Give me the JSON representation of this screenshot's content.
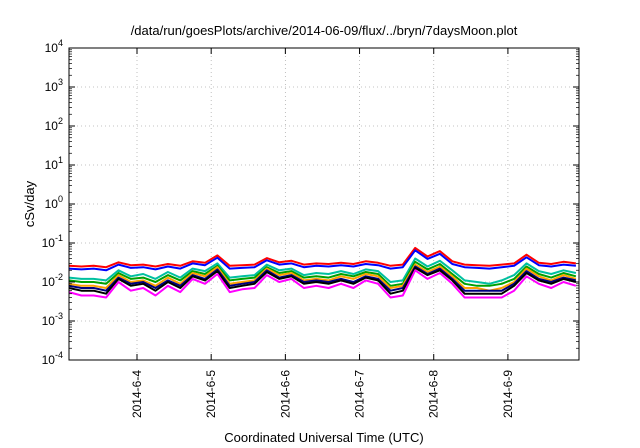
{
  "chart_data": {
    "type": "line",
    "title": "/data/run/goesPlots/archive/2014-06-09/flux/../bryn/7daysMoon.plot",
    "xlabel": "Coordinated Universal Time (UTC)",
    "ylabel": "cSv/day",
    "yscale": "log",
    "ylim": [
      0.0001,
      10000
    ],
    "xlim": [
      "2014-06-03T02:00",
      "2014-06-09T23:00"
    ],
    "grid": true,
    "legend": "none",
    "y_ticks": [
      {
        "base": "10",
        "exp": "4",
        "value": 10000
      },
      {
        "base": "10",
        "exp": "3",
        "value": 1000
      },
      {
        "base": "10",
        "exp": "2",
        "value": 100
      },
      {
        "base": "10",
        "exp": "1",
        "value": 10
      },
      {
        "base": "10",
        "exp": "0",
        "value": 1
      },
      {
        "base": "10",
        "exp": "-1",
        "value": 0.1
      },
      {
        "base": "10",
        "exp": "-2",
        "value": 0.01
      },
      {
        "base": "10",
        "exp": "-3",
        "value": 0.001
      },
      {
        "base": "10",
        "exp": "-4",
        "value": 0.0001
      }
    ],
    "x_ticks": [
      {
        "label": "2014-6-4",
        "value": "2014-06-04"
      },
      {
        "label": "2014-6-5",
        "value": "2014-06-05"
      },
      {
        "label": "2014-6-6",
        "value": "2014-06-06"
      },
      {
        "label": "2014-6-7",
        "value": "2014-06-07"
      },
      {
        "label": "2014-6-8",
        "value": "2014-06-08"
      },
      {
        "label": "2014-6-9",
        "value": "2014-06-09"
      }
    ],
    "x": [
      "2014-06-03T02:00",
      "2014-06-03T06:00",
      "2014-06-03T10:00",
      "2014-06-03T14:00",
      "2014-06-03T18:00",
      "2014-06-03T22:00",
      "2014-06-04T02:00",
      "2014-06-04T06:00",
      "2014-06-04T10:00",
      "2014-06-04T14:00",
      "2014-06-04T18:00",
      "2014-06-04T22:00",
      "2014-06-05T02:00",
      "2014-06-05T06:00",
      "2014-06-05T10:00",
      "2014-06-05T14:00",
      "2014-06-05T18:00",
      "2014-06-05T22:00",
      "2014-06-06T02:00",
      "2014-06-06T06:00",
      "2014-06-06T10:00",
      "2014-06-06T14:00",
      "2014-06-06T18:00",
      "2014-06-06T22:00",
      "2014-06-07T02:00",
      "2014-06-07T06:00",
      "2014-06-07T10:00",
      "2014-06-07T14:00",
      "2014-06-07T18:00",
      "2014-06-07T22:00",
      "2014-06-08T02:00",
      "2014-06-08T06:00",
      "2014-06-08T10:00",
      "2014-06-08T14:00",
      "2014-06-08T18:00",
      "2014-06-08T22:00",
      "2014-06-09T02:00",
      "2014-06-09T06:00",
      "2014-06-09T10:00",
      "2014-06-09T14:00",
      "2014-06-09T18:00",
      "2014-06-09T22:00"
    ],
    "series": [
      {
        "color": "#ff0000",
        "values": [
          0.026,
          0.025,
          0.026,
          0.024,
          0.032,
          0.027,
          0.028,
          0.025,
          0.029,
          0.026,
          0.034,
          0.031,
          0.048,
          0.026,
          0.027,
          0.028,
          0.041,
          0.032,
          0.035,
          0.028,
          0.03,
          0.029,
          0.031,
          0.029,
          0.034,
          0.031,
          0.026,
          0.028,
          0.075,
          0.045,
          0.062,
          0.034,
          0.028,
          0.027,
          0.026,
          0.028,
          0.03,
          0.05,
          0.031,
          0.029,
          0.033,
          0.03
        ]
      },
      {
        "color": "#0000ff",
        "values": [
          0.022,
          0.021,
          0.022,
          0.02,
          0.028,
          0.023,
          0.024,
          0.021,
          0.025,
          0.022,
          0.03,
          0.027,
          0.042,
          0.022,
          0.023,
          0.024,
          0.036,
          0.028,
          0.03,
          0.024,
          0.026,
          0.025,
          0.027,
          0.025,
          0.029,
          0.027,
          0.022,
          0.024,
          0.065,
          0.039,
          0.053,
          0.029,
          0.024,
          0.023,
          0.022,
          0.024,
          0.026,
          0.043,
          0.027,
          0.025,
          0.028,
          0.026
        ]
      },
      {
        "color": "#00c0a0",
        "values": [
          0.013,
          0.012,
          0.012,
          0.011,
          0.02,
          0.014,
          0.016,
          0.012,
          0.018,
          0.013,
          0.022,
          0.019,
          0.03,
          0.013,
          0.014,
          0.015,
          0.028,
          0.02,
          0.022,
          0.015,
          0.017,
          0.016,
          0.019,
          0.016,
          0.021,
          0.019,
          0.01,
          0.011,
          0.04,
          0.025,
          0.035,
          0.02,
          0.011,
          0.01,
          0.009,
          0.011,
          0.015,
          0.03,
          0.019,
          0.016,
          0.02,
          0.017
        ]
      },
      {
        "color": "#00a000",
        "values": [
          0.011,
          0.01,
          0.01,
          0.009,
          0.017,
          0.012,
          0.013,
          0.01,
          0.015,
          0.011,
          0.019,
          0.016,
          0.026,
          0.011,
          0.012,
          0.013,
          0.024,
          0.017,
          0.019,
          0.013,
          0.014,
          0.013,
          0.016,
          0.014,
          0.018,
          0.016,
          0.008,
          0.009,
          0.033,
          0.021,
          0.029,
          0.016,
          0.009,
          0.008,
          0.008,
          0.009,
          0.012,
          0.025,
          0.016,
          0.013,
          0.017,
          0.014
        ]
      },
      {
        "color": "#ffa000",
        "values": [
          0.009,
          0.008,
          0.008,
          0.007,
          0.015,
          0.01,
          0.011,
          0.008,
          0.013,
          0.009,
          0.017,
          0.014,
          0.024,
          0.009,
          0.01,
          0.011,
          0.022,
          0.015,
          0.017,
          0.011,
          0.012,
          0.011,
          0.014,
          0.012,
          0.016,
          0.014,
          0.007,
          0.008,
          0.028,
          0.018,
          0.025,
          0.014,
          0.007,
          0.007,
          0.006,
          0.007,
          0.01,
          0.022,
          0.014,
          0.011,
          0.015,
          0.012
        ]
      },
      {
        "color": "#000080",
        "values": [
          0.008,
          0.007,
          0.007,
          0.006,
          0.013,
          0.009,
          0.01,
          0.007,
          0.011,
          0.008,
          0.015,
          0.012,
          0.021,
          0.008,
          0.009,
          0.01,
          0.02,
          0.013,
          0.015,
          0.01,
          0.011,
          0.01,
          0.012,
          0.01,
          0.014,
          0.012,
          0.006,
          0.007,
          0.025,
          0.016,
          0.022,
          0.012,
          0.006,
          0.006,
          0.006,
          0.006,
          0.009,
          0.019,
          0.012,
          0.01,
          0.013,
          0.011
        ]
      },
      {
        "color": "#000000",
        "values": [
          0.007,
          0.006,
          0.006,
          0.005,
          0.012,
          0.008,
          0.009,
          0.006,
          0.01,
          0.007,
          0.014,
          0.011,
          0.019,
          0.007,
          0.008,
          0.009,
          0.018,
          0.012,
          0.014,
          0.009,
          0.01,
          0.009,
          0.011,
          0.009,
          0.013,
          0.011,
          0.005,
          0.006,
          0.023,
          0.015,
          0.02,
          0.011,
          0.005,
          0.005,
          0.005,
          0.005,
          0.008,
          0.017,
          0.011,
          0.009,
          0.012,
          0.01
        ]
      },
      {
        "color": "#ff00ff",
        "values": [
          0.0055,
          0.0045,
          0.0045,
          0.004,
          0.01,
          0.006,
          0.007,
          0.0045,
          0.008,
          0.0055,
          0.012,
          0.009,
          0.016,
          0.0055,
          0.0065,
          0.007,
          0.015,
          0.01,
          0.012,
          0.007,
          0.008,
          0.007,
          0.009,
          0.007,
          0.011,
          0.009,
          0.004,
          0.0045,
          0.02,
          0.012,
          0.017,
          0.009,
          0.004,
          0.004,
          0.004,
          0.004,
          0.006,
          0.014,
          0.009,
          0.007,
          0.01,
          0.008
        ]
      }
    ]
  }
}
